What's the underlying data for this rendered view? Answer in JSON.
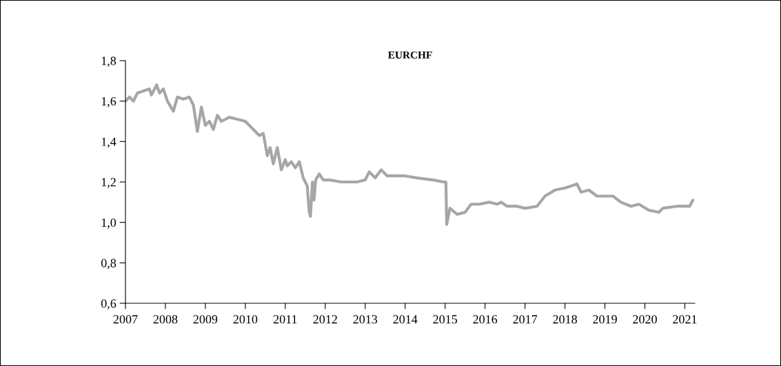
{
  "chart_data": {
    "type": "line",
    "title": "EURCHF",
    "x": [
      2007.0,
      2007.1,
      2007.2,
      2007.3,
      2007.45,
      2007.6,
      2007.65,
      2007.78,
      2007.85,
      2007.95,
      2008.05,
      2008.2,
      2008.3,
      2008.45,
      2008.6,
      2008.7,
      2008.8,
      2008.9,
      2009.0,
      2009.1,
      2009.2,
      2009.3,
      2009.4,
      2009.6,
      2009.8,
      2010.0,
      2010.2,
      2010.35,
      2010.45,
      2010.55,
      2010.62,
      2010.7,
      2010.8,
      2010.9,
      2011.0,
      2011.05,
      2011.15,
      2011.25,
      2011.35,
      2011.45,
      2011.55,
      2011.6,
      2011.63,
      2011.68,
      2011.72,
      2011.76,
      2011.85,
      2011.95,
      2012.1,
      2012.4,
      2012.8,
      2013.0,
      2013.1,
      2013.25,
      2013.4,
      2013.55,
      2014.0,
      2014.3,
      2014.7,
      2014.95,
      2015.02,
      2015.04,
      2015.12,
      2015.3,
      2015.5,
      2015.65,
      2015.85,
      2016.1,
      2016.3,
      2016.4,
      2016.55,
      2016.8,
      2017.0,
      2017.3,
      2017.5,
      2017.75,
      2018.0,
      2018.3,
      2018.4,
      2018.6,
      2018.8,
      2019.2,
      2019.4,
      2019.65,
      2019.85,
      2020.1,
      2020.35,
      2020.45,
      2020.8,
      2021.0,
      2021.12,
      2021.2
    ],
    "series": [
      {
        "color": "#a6a6a6",
        "values": [
          1.6,
          1.62,
          1.6,
          1.64,
          1.65,
          1.66,
          1.63,
          1.68,
          1.64,
          1.66,
          1.6,
          1.55,
          1.62,
          1.61,
          1.62,
          1.58,
          1.45,
          1.57,
          1.48,
          1.5,
          1.46,
          1.53,
          1.5,
          1.52,
          1.51,
          1.5,
          1.46,
          1.43,
          1.44,
          1.33,
          1.37,
          1.29,
          1.37,
          1.26,
          1.31,
          1.28,
          1.3,
          1.27,
          1.3,
          1.22,
          1.18,
          1.05,
          1.03,
          1.2,
          1.11,
          1.21,
          1.24,
          1.21,
          1.21,
          1.2,
          1.2,
          1.21,
          1.25,
          1.22,
          1.26,
          1.23,
          1.23,
          1.22,
          1.21,
          1.2,
          1.2,
          0.99,
          1.07,
          1.04,
          1.05,
          1.09,
          1.09,
          1.1,
          1.09,
          1.1,
          1.08,
          1.08,
          1.07,
          1.08,
          1.13,
          1.16,
          1.17,
          1.19,
          1.15,
          1.16,
          1.13,
          1.13,
          1.1,
          1.08,
          1.09,
          1.06,
          1.05,
          1.07,
          1.08,
          1.08,
          1.08,
          1.11
        ]
      }
    ],
    "xlim": [
      2007,
      2021.25
    ],
    "ylim": [
      0.6,
      1.8
    ],
    "xticks": [
      2007,
      2008,
      2009,
      2010,
      2011,
      2012,
      2013,
      2014,
      2015,
      2016,
      2017,
      2018,
      2019,
      2020,
      2021
    ],
    "yticks": [
      {
        "value": 0.6,
        "label": "0,6"
      },
      {
        "value": 0.8,
        "label": "0,8"
      },
      {
        "value": 1.0,
        "label": "1,0"
      },
      {
        "value": 1.2,
        "label": "1,2"
      },
      {
        "value": 1.4,
        "label": "1,4"
      },
      {
        "value": 1.6,
        "label": "1,6"
      },
      {
        "value": 1.8,
        "label": "1,8"
      }
    ]
  }
}
